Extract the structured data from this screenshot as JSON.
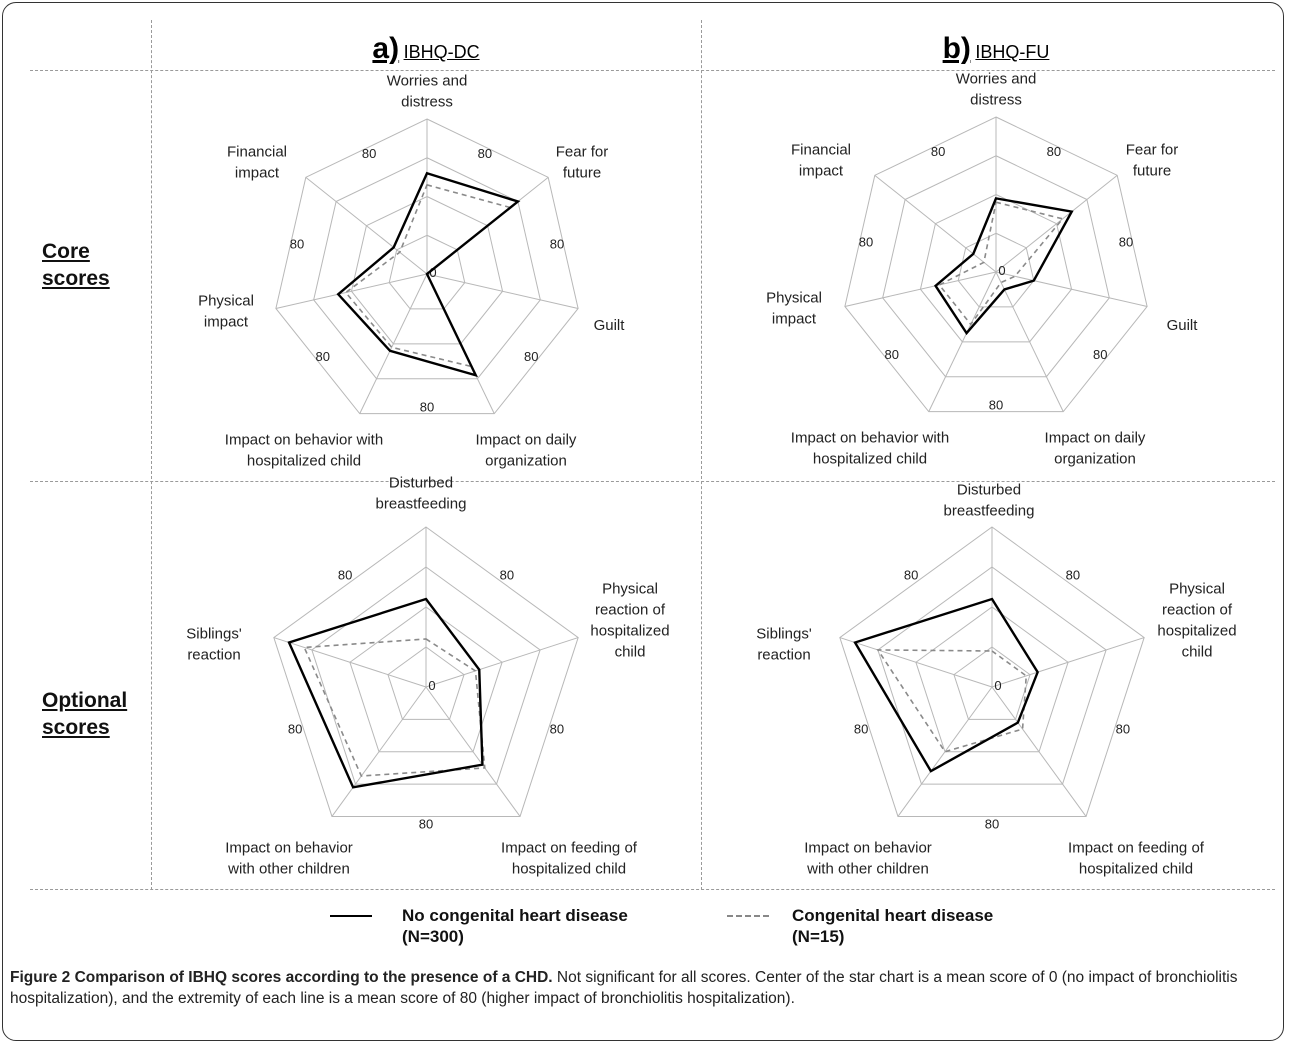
{
  "panels_header": [
    {
      "letter": "a)",
      "name": "IBHQ-DC"
    },
    {
      "letter": "b)",
      "name": "IBHQ-FU"
    }
  ],
  "rows_header": {
    "core": [
      "Core",
      "scores"
    ],
    "optional": [
      "Optional",
      "scores"
    ]
  },
  "scale_labels": {
    "center": "0",
    "max": "80"
  },
  "legend": [
    {
      "label": "No congenital heart disease",
      "n": "(N=300)",
      "style": "solid",
      "color": "#000000"
    },
    {
      "label": "Congenital heart disease",
      "n": "(N=15)",
      "style": "dashed",
      "color": "#888888"
    }
  ],
  "caption": {
    "title": "Figure 2 Comparison of IBHQ scores according to the presence of a CHD.",
    "text": " Not significant for all scores. Center of the star chart is a mean score of 0 (no impact of bronchiolitis hospitalization), and the extremity of each line is a mean score of 80 (higher impact of bronchiolitis hospitalization)."
  },
  "chart_data": [
    {
      "type": "radar",
      "panel": "a) IBHQ-DC",
      "row": "Core scores",
      "axes": [
        [
          "Worries and",
          "distress"
        ],
        [
          "Fear for",
          "future"
        ],
        [
          "Guilt"
        ],
        [
          "Impact on daily",
          "organization"
        ],
        [
          "Impact on behavior with",
          "hospitalized child"
        ],
        [
          "Physical",
          "impact"
        ],
        [
          "Financial",
          "impact"
        ]
      ],
      "range": [
        0,
        80
      ],
      "series": [
        {
          "name": "No congenital heart disease",
          "values": [
            52,
            60,
            0,
            58,
            44,
            47,
            22
          ]
        },
        {
          "name": "Congenital heart disease",
          "values": [
            46,
            55,
            0,
            53,
            42,
            43,
            18
          ]
        }
      ]
    },
    {
      "type": "radar",
      "panel": "b) IBHQ-FU",
      "row": "Core scores",
      "axes": [
        [
          "Worries and",
          "distress"
        ],
        [
          "Fear for",
          "future"
        ],
        [
          "Guilt"
        ],
        [
          "Impact on daily",
          "organization"
        ],
        [
          "Impact on behavior with",
          "hospitalized child"
        ],
        [
          "Physical",
          "impact"
        ],
        [
          "Financial",
          "impact"
        ]
      ],
      "range": [
        0,
        80
      ],
      "series": [
        {
          "name": "No congenital heart disease",
          "values": [
            38,
            50,
            20,
            10,
            35,
            32,
            15
          ]
        },
        {
          "name": "Congenital heart disease",
          "values": [
            36,
            44,
            10,
            6,
            30,
            30,
            8
          ]
        }
      ]
    },
    {
      "type": "radar",
      "panel": "a) IBHQ-DC",
      "row": "Optional scores",
      "axes": [
        [
          "Disturbed",
          "breastfeeding"
        ],
        [
          "Physical",
          "reaction of",
          "hospitalized",
          "child"
        ],
        [
          "Impact on feeding of",
          "hospitalized child"
        ],
        [
          "Impact on behavior",
          "with other children"
        ],
        [
          "Siblings'",
          "reaction"
        ]
      ],
      "range": [
        0,
        80
      ],
      "series": [
        {
          "name": "No congenital heart disease",
          "values": [
            44,
            28,
            48,
            62,
            72
          ]
        },
        {
          "name": "Congenital heart disease",
          "values": [
            24,
            26,
            50,
            55,
            64
          ]
        }
      ]
    },
    {
      "type": "radar",
      "panel": "b) IBHQ-FU",
      "row": "Optional scores",
      "axes": [
        [
          "Disturbed",
          "breastfeeding"
        ],
        [
          "Physical",
          "reaction of",
          "hospitalized",
          "child"
        ],
        [
          "Impact on feeding of",
          "hospitalized child"
        ],
        [
          "Impact on behavior",
          "with other children"
        ],
        [
          "Siblings'",
          "reaction"
        ]
      ],
      "range": [
        0,
        80
      ],
      "series": [
        {
          "name": "No congenital heart disease",
          "values": [
            44,
            24,
            22,
            52,
            72
          ]
        },
        {
          "name": "Congenital heart disease",
          "values": [
            18,
            18,
            26,
            40,
            60
          ]
        }
      ]
    }
  ]
}
